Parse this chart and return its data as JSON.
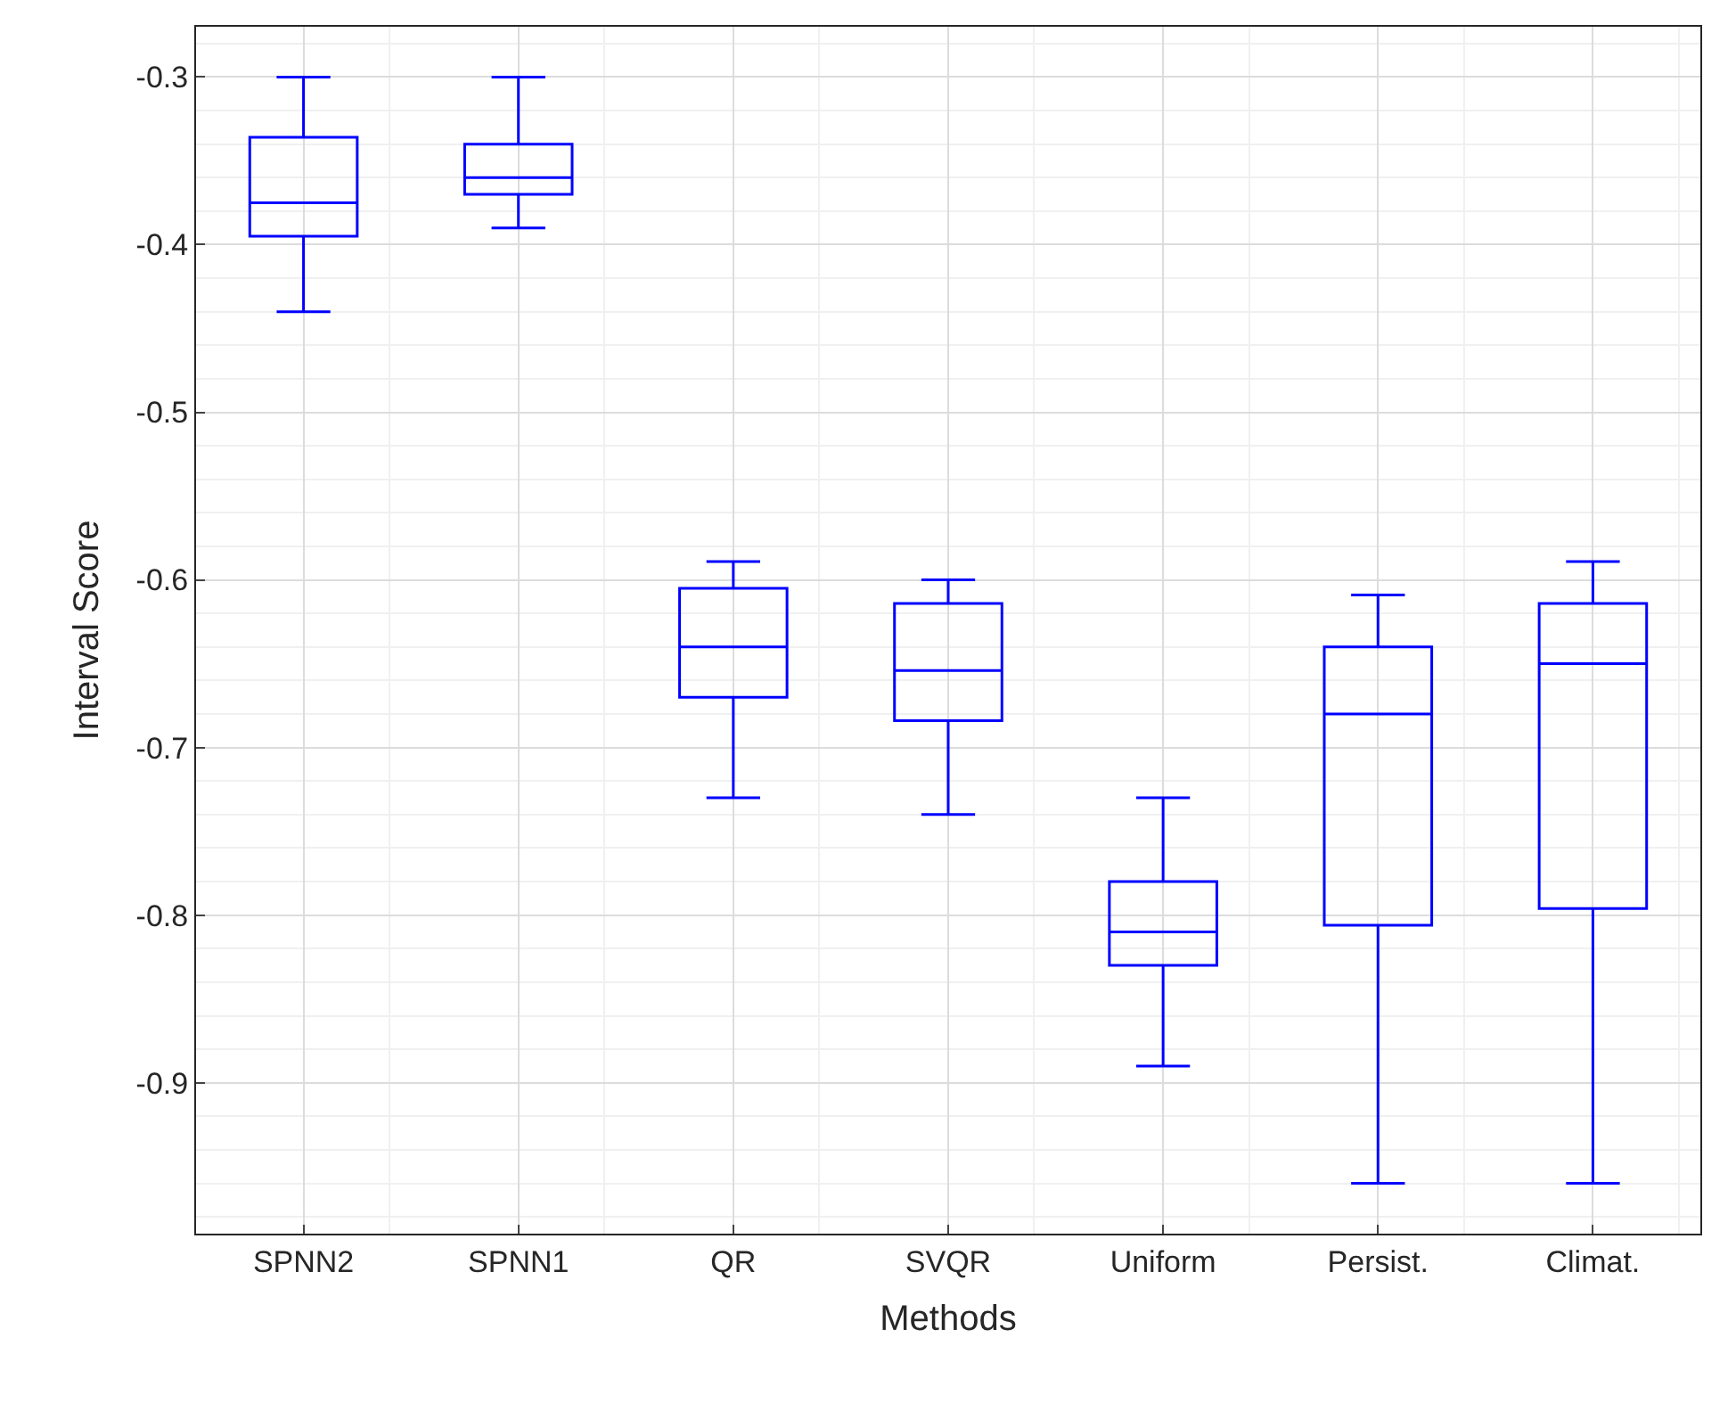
{
  "chart_data": {
    "type": "box",
    "xlabel": "Methods",
    "ylabel": "Interval Score",
    "categories": [
      "SPNN2",
      "SPNN1",
      "QR",
      "SVQR",
      "Uniform",
      "Persist.",
      "Climat."
    ],
    "series": [
      {
        "color": "#0000ff",
        "boxes": [
          {
            "low": -0.44,
            "q1": -0.395,
            "median": -0.375,
            "q3": -0.336,
            "high": -0.3
          },
          {
            "low": -0.39,
            "q1": -0.37,
            "median": -0.36,
            "q3": -0.34,
            "high": -0.3
          },
          {
            "low": -0.73,
            "q1": -0.67,
            "median": -0.64,
            "q3": -0.605,
            "high": -0.589
          },
          {
            "low": -0.74,
            "q1": -0.684,
            "median": -0.654,
            "q3": -0.614,
            "high": -0.6
          },
          {
            "low": -0.89,
            "q1": -0.83,
            "median": -0.81,
            "q3": -0.78,
            "high": -0.73
          },
          {
            "low": -0.96,
            "q1": -0.806,
            "median": -0.68,
            "q3": -0.64,
            "high": -0.609
          },
          {
            "low": -0.96,
            "q1": -0.796,
            "median": -0.65,
            "q3": -0.614,
            "high": -0.589
          }
        ]
      }
    ],
    "ylim": [
      -0.99,
      -0.27
    ],
    "yticks": [
      -0.9,
      -0.8,
      -0.7,
      -0.6,
      -0.5,
      -0.4,
      -0.3
    ],
    "grid": true
  }
}
